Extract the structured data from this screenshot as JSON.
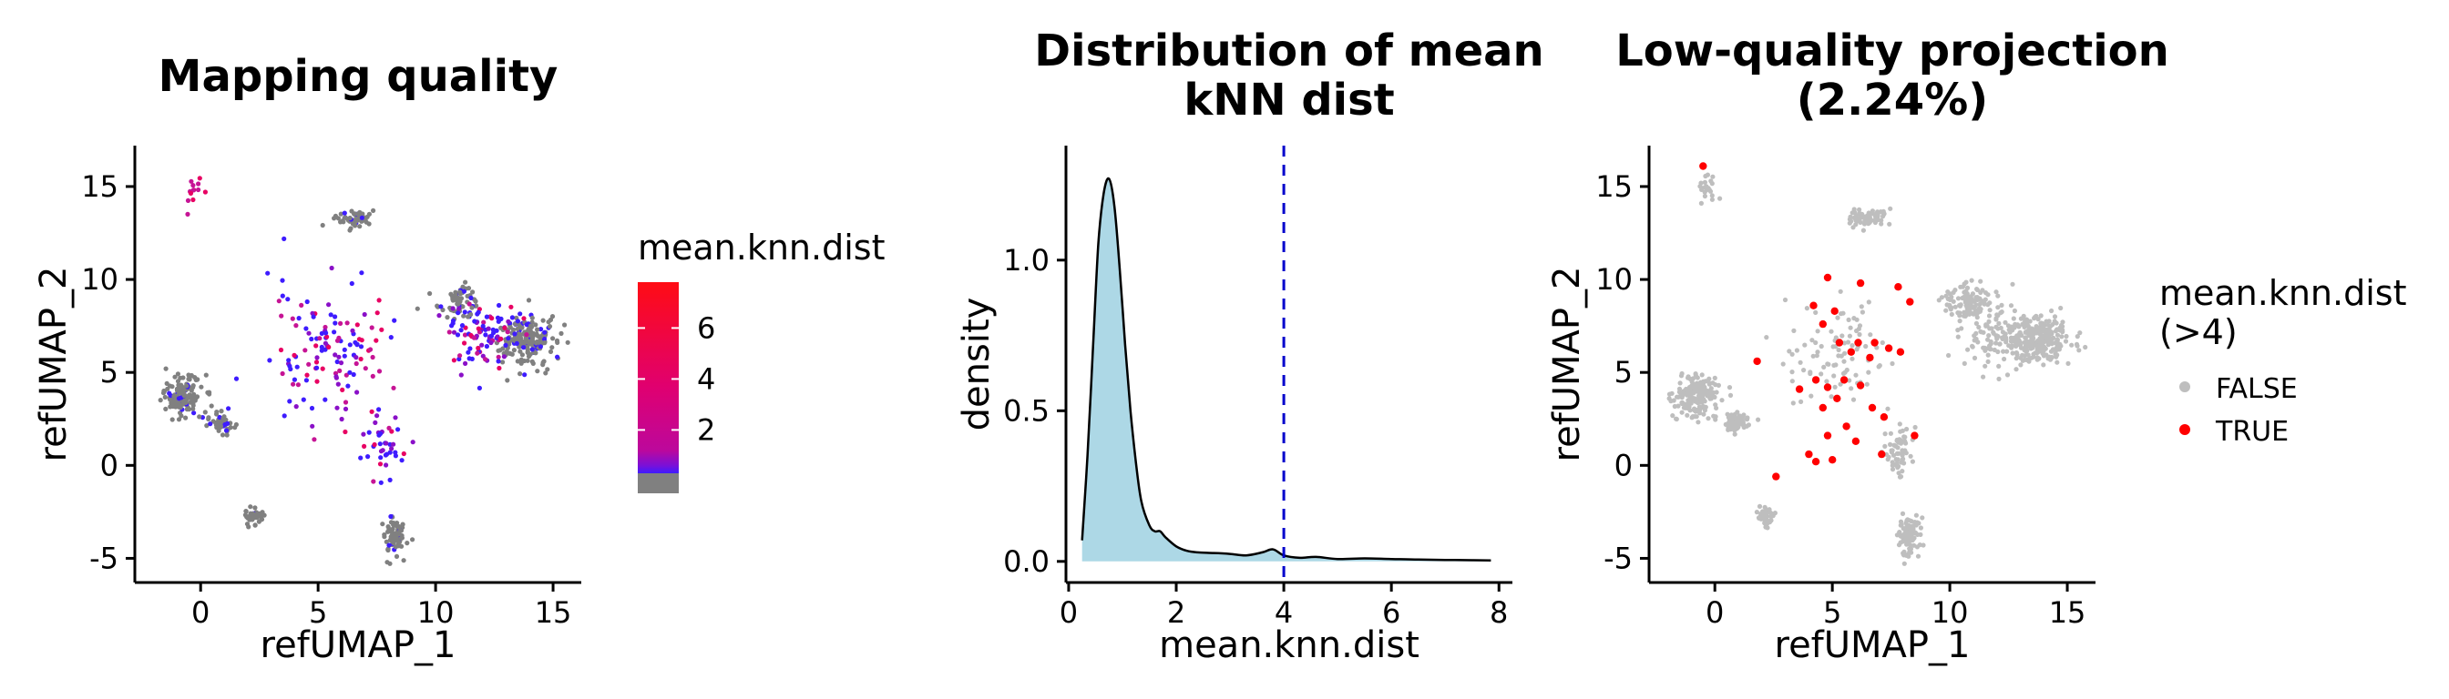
{
  "chart_data": [
    {
      "type": "scatter",
      "title": "Mapping quality",
      "xlabel": "refUMAP_1",
      "ylabel": "refUMAP_2",
      "xlim": [
        -2.8,
        16.2
      ],
      "ylim": [
        -6.3,
        17.2
      ],
      "xticks": [
        0,
        5,
        10,
        15
      ],
      "xtick_labels": [
        "0",
        "5",
        "10",
        "15"
      ],
      "yticks": [
        -5,
        0,
        5,
        10,
        15
      ],
      "ytick_labels": [
        "-5",
        "0",
        "5",
        "10",
        "15"
      ],
      "color_variable": "mean.knn.dist",
      "colorbar": {
        "title": "mean.knn.dist",
        "ticks": [
          2,
          4,
          6
        ],
        "tick_labels": [
          "2",
          "4",
          "6"
        ],
        "range": [
          0.3,
          7.8
        ],
        "na_value_color": "#808080",
        "gradient_colors": [
          "#3E1CFF",
          "#C61495",
          "#E80063",
          "#FF0C14"
        ]
      },
      "clusters": [
        {
          "x": -0.2,
          "y": 14.8,
          "n": 14,
          "sx": 0.5,
          "sy": 0.8,
          "level": "high"
        },
        {
          "x": -0.8,
          "y": 3.8,
          "n": 140,
          "sx": 0.8,
          "sy": 1.0,
          "level": "low"
        },
        {
          "x": 0.9,
          "y": 2.3,
          "n": 45,
          "sx": 0.5,
          "sy": 0.5,
          "level": "low"
        },
        {
          "x": 6.5,
          "y": 13.3,
          "n": 55,
          "sx": 0.7,
          "sy": 0.45,
          "level": "low"
        },
        {
          "x": 2.2,
          "y": -2.8,
          "n": 40,
          "sx": 0.4,
          "sy": 0.55,
          "level": "low"
        },
        {
          "x": 8.2,
          "y": -3.8,
          "n": 75,
          "sx": 0.45,
          "sy": 0.9,
          "level": "low"
        },
        {
          "x": 11.0,
          "y": 8.8,
          "n": 70,
          "sx": 0.8,
          "sy": 0.8,
          "level": "low"
        },
        {
          "x": 13.8,
          "y": 6.8,
          "n": 210,
          "sx": 1.2,
          "sy": 1.2,
          "level": "low"
        },
        {
          "x": 12.0,
          "y": 7.0,
          "n": 90,
          "sx": 1.5,
          "sy": 1.6,
          "level": "mid"
        },
        {
          "x": 5.5,
          "y": 6.0,
          "n": 130,
          "sx": 2.3,
          "sy": 3.2,
          "level": "mid"
        },
        {
          "x": 7.8,
          "y": 1.0,
          "n": 40,
          "sx": 0.9,
          "sy": 1.6,
          "level": "mid"
        }
      ]
    },
    {
      "type": "area",
      "title": "Distribution of mean\nkNN dist",
      "xlabel": "mean.knn.dist",
      "ylabel": "density",
      "xlim": [
        -0.05,
        8.25
      ],
      "ylim": [
        -0.07,
        1.38
      ],
      "xticks": [
        0,
        2,
        4,
        6,
        8
      ],
      "xtick_labels": [
        "0",
        "2",
        "4",
        "6",
        "8"
      ],
      "yticks": [
        0.0,
        0.5,
        1.0
      ],
      "ytick_labels": [
        "0.0",
        "0.5",
        "1.0"
      ],
      "fill_color": "#ADD8E6",
      "threshold_line": 4,
      "threshold_color": "#0000CC",
      "x": [
        0.25,
        0.35,
        0.45,
        0.55,
        0.65,
        0.75,
        0.85,
        0.95,
        1.05,
        1.15,
        1.25,
        1.35,
        1.5,
        1.6,
        1.7,
        1.8,
        2.0,
        2.2,
        2.4,
        2.7,
        3.0,
        3.3,
        3.6,
        3.8,
        4.0,
        4.3,
        4.6,
        5.0,
        5.5,
        6.0,
        6.5,
        7.0,
        7.5,
        7.85
      ],
      "y": [
        0.07,
        0.35,
        0.7,
        1.05,
        1.22,
        1.27,
        1.18,
        0.97,
        0.72,
        0.5,
        0.33,
        0.2,
        0.12,
        0.1,
        0.1,
        0.08,
        0.05,
        0.035,
        0.03,
        0.028,
        0.025,
        0.02,
        0.03,
        0.04,
        0.02,
        0.012,
        0.015,
        0.008,
        0.01,
        0.008,
        0.006,
        0.005,
        0.004,
        0.003
      ]
    },
    {
      "type": "scatter",
      "title": "Low-quality projection\n(2.24%)",
      "xlabel": "refUMAP_1",
      "ylabel": "refUMAP_2",
      "xlim": [
        -2.8,
        16.2
      ],
      "ylim": [
        -6.3,
        17.2
      ],
      "xticks": [
        0,
        5,
        10,
        15
      ],
      "xtick_labels": [
        "0",
        "5",
        "10",
        "15"
      ],
      "yticks": [
        -5,
        0,
        5,
        10,
        15
      ],
      "ytick_labels": [
        "-5",
        "0",
        "5",
        "10",
        "15"
      ],
      "legend": {
        "title_line1": "mean.knn.dist",
        "title_line2": "(>4)",
        "entries": [
          {
            "label": "FALSE",
            "color": "#BEBEBE"
          },
          {
            "label": "TRUE",
            "color": "#FF0000"
          }
        ]
      },
      "true_points": [
        [
          -0.5,
          16.1
        ],
        [
          4.8,
          10.1
        ],
        [
          6.2,
          9.8
        ],
        [
          7.8,
          9.6
        ],
        [
          8.3,
          8.8
        ],
        [
          4.2,
          8.6
        ],
        [
          4.6,
          7.6
        ],
        [
          5.1,
          8.3
        ],
        [
          6.1,
          6.6
        ],
        [
          6.8,
          6.6
        ],
        [
          7.4,
          6.3
        ],
        [
          7.9,
          6.1
        ],
        [
          5.3,
          6.6
        ],
        [
          5.8,
          6.1
        ],
        [
          6.6,
          5.8
        ],
        [
          4.3,
          4.6
        ],
        [
          4.8,
          4.2
        ],
        [
          5.5,
          4.6
        ],
        [
          6.2,
          4.3
        ],
        [
          3.6,
          4.1
        ],
        [
          4.6,
          3.1
        ],
        [
          5.2,
          3.6
        ],
        [
          6.7,
          3.1
        ],
        [
          7.2,
          2.6
        ],
        [
          5.6,
          2.1
        ],
        [
          4.8,
          1.6
        ],
        [
          6.0,
          1.3
        ],
        [
          8.5,
          1.6
        ],
        [
          4.0,
          0.6
        ],
        [
          2.6,
          -0.6
        ],
        [
          5.0,
          0.3
        ],
        [
          7.1,
          0.6
        ],
        [
          1.8,
          5.6
        ],
        [
          4.3,
          0.2
        ]
      ],
      "false_clusters": [
        {
          "x": -0.3,
          "y": 14.8,
          "n": 22,
          "sx": 0.4,
          "sy": 0.8
        },
        {
          "x": -0.8,
          "y": 3.8,
          "n": 190,
          "sx": 0.8,
          "sy": 1.0
        },
        {
          "x": 0.9,
          "y": 2.3,
          "n": 60,
          "sx": 0.5,
          "sy": 0.5
        },
        {
          "x": 2.2,
          "y": -2.8,
          "n": 50,
          "sx": 0.4,
          "sy": 0.55
        },
        {
          "x": 8.2,
          "y": -3.8,
          "n": 100,
          "sx": 0.45,
          "sy": 0.9
        },
        {
          "x": 7.8,
          "y": 0.8,
          "n": 60,
          "sx": 0.6,
          "sy": 1.3
        },
        {
          "x": 6.5,
          "y": 13.3,
          "n": 65,
          "sx": 0.7,
          "sy": 0.45
        },
        {
          "x": 10.8,
          "y": 8.8,
          "n": 110,
          "sx": 0.9,
          "sy": 0.8
        },
        {
          "x": 13.8,
          "y": 6.8,
          "n": 260,
          "sx": 1.2,
          "sy": 1.2
        },
        {
          "x": 12.0,
          "y": 6.8,
          "n": 110,
          "sx": 1.4,
          "sy": 1.4
        },
        {
          "x": 5.3,
          "y": 6.2,
          "n": 90,
          "sx": 2.0,
          "sy": 2.8
        }
      ]
    }
  ]
}
